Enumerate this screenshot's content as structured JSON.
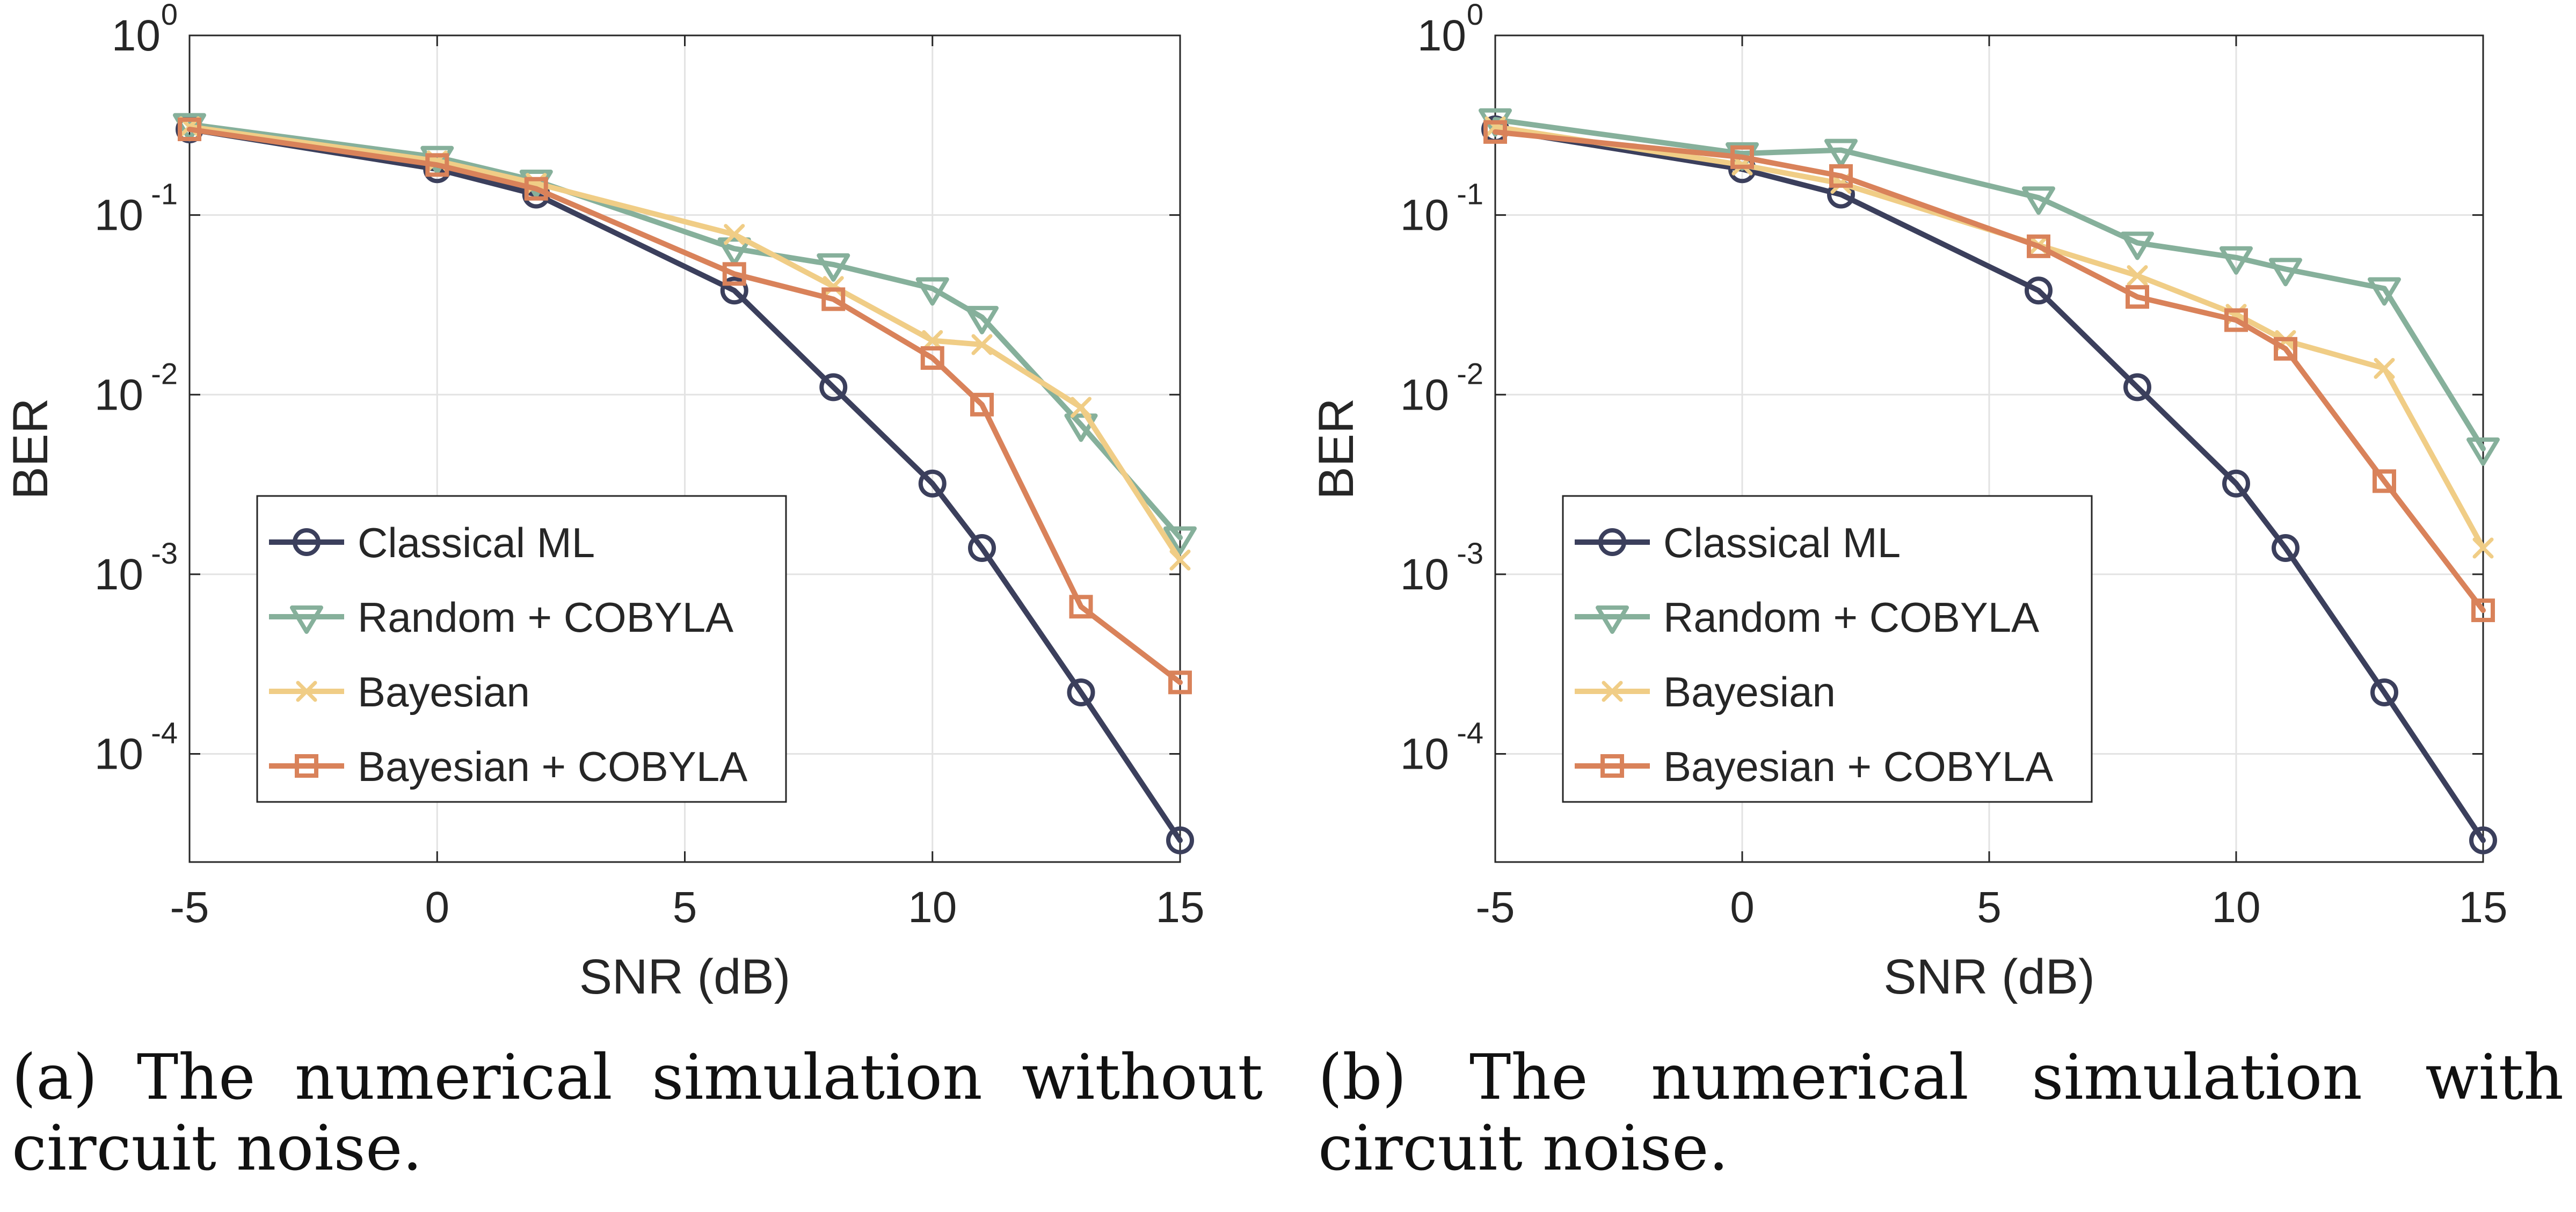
{
  "styles": {
    "colors": {
      "Classical ML": "#3b3f5c",
      "Random + COBYLA": "#86b09b",
      "Bayesian": "#f0cd86",
      "Bayesian + COBYLA": "#d9825a"
    },
    "markers": {
      "Classical ML": "circle",
      "Random + COBYLA": "triangle-down",
      "Bayesian": "x",
      "Bayesian + COBYLA": "square"
    }
  },
  "chart_data": [
    {
      "type": "line",
      "title": "",
      "xlabel": "SNR (dB)",
      "ylabel": "BER",
      "xlim": [
        -5,
        15
      ],
      "ylim": [
        2.5e-05,
        1
      ],
      "yscale": "log",
      "grid": true,
      "legend_position": "bottom-left",
      "x_ticks": [
        -5,
        0,
        5,
        10,
        15
      ],
      "x_tick_labels": [
        "-5",
        "0",
        "5",
        "10",
        "15"
      ],
      "y_ticks": [
        {
          "value": 1,
          "base": "10",
          "exp": "0"
        },
        {
          "value": 0.1,
          "base": "10",
          "exp": "-1"
        },
        {
          "value": 0.01,
          "base": "10",
          "exp": "-2"
        },
        {
          "value": 0.001,
          "base": "10",
          "exp": "-3"
        },
        {
          "value": 0.0001,
          "base": "10",
          "exp": "-4"
        }
      ],
      "caption": "(a) The numerical simulation without circuit noise.",
      "series": [
        {
          "name": "Classical ML",
          "x": [
            -5,
            0,
            2,
            6,
            8,
            10,
            11,
            13,
            15
          ],
          "y": [
            0.3,
            0.18,
            0.13,
            0.038,
            0.011,
            0.0032,
            0.0014,
            0.00022,
            3.3e-05
          ]
        },
        {
          "name": "Random + COBYLA",
          "x": [
            -5,
            0,
            2,
            6,
            8,
            10,
            11,
            13,
            15
          ],
          "y": [
            0.32,
            0.21,
            0.155,
            0.065,
            0.053,
            0.039,
            0.027,
            0.0068,
            0.0016
          ]
        },
        {
          "name": "Bayesian",
          "x": [
            -5,
            0,
            2,
            6,
            8,
            10,
            11,
            13,
            15
          ],
          "y": [
            0.31,
            0.2,
            0.15,
            0.078,
            0.04,
            0.02,
            0.019,
            0.0085,
            0.0012
          ]
        },
        {
          "name": "Bayesian + COBYLA",
          "x": [
            -5,
            0,
            2,
            6,
            8,
            10,
            11,
            13,
            15
          ],
          "y": [
            0.3,
            0.19,
            0.14,
            0.047,
            0.034,
            0.016,
            0.0088,
            0.00066,
            0.00025
          ]
        }
      ]
    },
    {
      "type": "line",
      "title": "",
      "xlabel": "SNR (dB)",
      "ylabel": "BER",
      "xlim": [
        -5,
        15
      ],
      "ylim": [
        2.5e-05,
        1
      ],
      "yscale": "log",
      "grid": true,
      "legend_position": "bottom-left",
      "x_ticks": [
        -5,
        0,
        5,
        10,
        15
      ],
      "x_tick_labels": [
        "-5",
        "0",
        "5",
        "10",
        "15"
      ],
      "y_ticks": [
        {
          "value": 1,
          "base": "10",
          "exp": "0"
        },
        {
          "value": 0.1,
          "base": "10",
          "exp": "-1"
        },
        {
          "value": 0.01,
          "base": "10",
          "exp": "-2"
        },
        {
          "value": 0.001,
          "base": "10",
          "exp": "-3"
        },
        {
          "value": 0.0001,
          "base": "10",
          "exp": "-4"
        }
      ],
      "caption": "(b) The numerical simulation with circuit noise.",
      "series": [
        {
          "name": "Classical ML",
          "x": [
            -5,
            0,
            2,
            6,
            8,
            10,
            11,
            13,
            15
          ],
          "y": [
            0.3,
            0.18,
            0.13,
            0.038,
            0.011,
            0.0032,
            0.0014,
            0.00022,
            3.3e-05
          ]
        },
        {
          "name": "Random + COBYLA",
          "x": [
            -5,
            0,
            2,
            6,
            8,
            10,
            11,
            13,
            15
          ],
          "y": [
            0.34,
            0.22,
            0.23,
            0.125,
            0.07,
            0.058,
            0.05,
            0.039,
            0.005
          ]
        },
        {
          "name": "Bayesian",
          "x": [
            -5,
            0,
            2,
            6,
            8,
            10,
            11,
            13,
            15
          ],
          "y": [
            0.31,
            0.19,
            0.15,
            0.068,
            0.046,
            0.028,
            0.02,
            0.014,
            0.0014
          ]
        },
        {
          "name": "Bayesian + COBYLA",
          "x": [
            -5,
            0,
            2,
            6,
            8,
            10,
            11,
            13,
            15
          ],
          "y": [
            0.29,
            0.21,
            0.165,
            0.067,
            0.035,
            0.026,
            0.018,
            0.0033,
            0.00063
          ]
        }
      ]
    }
  ]
}
